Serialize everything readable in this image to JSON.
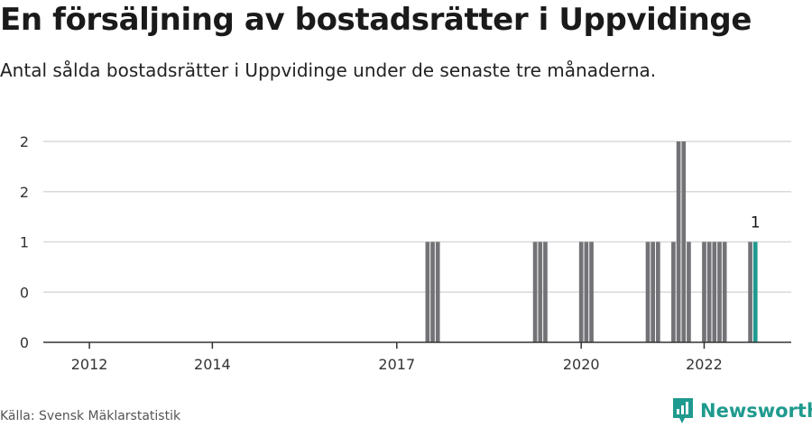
{
  "title": "En försäljning av bostadsrätter i Uppvidinge",
  "subtitle": "Antal sålda bostadsrätter i Uppvidinge under de senaste tre månaderna.",
  "source": "Källa: Svensk Mäklarstatistik",
  "brand": {
    "name": "Newsworthy"
  },
  "colors": {
    "bar": "#737377",
    "highlight": "#1f9a8e",
    "grid": "#d9d9d9",
    "axis": "#333333"
  },
  "chart_data": {
    "type": "bar",
    "xlim": [
      "2011-04",
      "2023-06"
    ],
    "ylim": [
      0,
      2
    ],
    "y_tick_labels": [
      {
        "value": 0,
        "label": "0"
      },
      {
        "value": 0.5,
        "label": "0"
      },
      {
        "value": 1,
        "label": "1"
      },
      {
        "value": 1.5,
        "label": "2"
      },
      {
        "value": 2,
        "label": "2"
      }
    ],
    "x_tick_labels": [
      {
        "date": "2012-01",
        "label": "2012"
      },
      {
        "date": "2014-01",
        "label": "2014"
      },
      {
        "date": "2017-01",
        "label": "2017"
      },
      {
        "date": "2020-01",
        "label": "2020"
      },
      {
        "date": "2022-01",
        "label": "2022"
      }
    ],
    "series": [
      {
        "values": [
          {
            "date": "2017-07",
            "value": 1
          },
          {
            "date": "2017-08",
            "value": 1
          },
          {
            "date": "2017-09",
            "value": 1
          },
          {
            "date": "2019-04",
            "value": 1
          },
          {
            "date": "2019-05",
            "value": 1
          },
          {
            "date": "2019-06",
            "value": 1
          },
          {
            "date": "2020-01",
            "value": 1
          },
          {
            "date": "2020-02",
            "value": 1
          },
          {
            "date": "2020-03",
            "value": 1
          },
          {
            "date": "2021-02",
            "value": 1
          },
          {
            "date": "2021-03",
            "value": 1
          },
          {
            "date": "2021-04",
            "value": 1
          },
          {
            "date": "2021-07",
            "value": 1
          },
          {
            "date": "2021-08",
            "value": 2
          },
          {
            "date": "2021-09",
            "value": 2
          },
          {
            "date": "2021-10",
            "value": 1
          },
          {
            "date": "2022-01",
            "value": 1
          },
          {
            "date": "2022-02",
            "value": 1
          },
          {
            "date": "2022-03",
            "value": 1
          },
          {
            "date": "2022-04",
            "value": 1
          },
          {
            "date": "2022-05",
            "value": 1
          },
          {
            "date": "2022-10",
            "value": 1
          },
          {
            "date": "2022-11",
            "value": 1,
            "highlight": true,
            "label": "1"
          }
        ]
      }
    ]
  }
}
